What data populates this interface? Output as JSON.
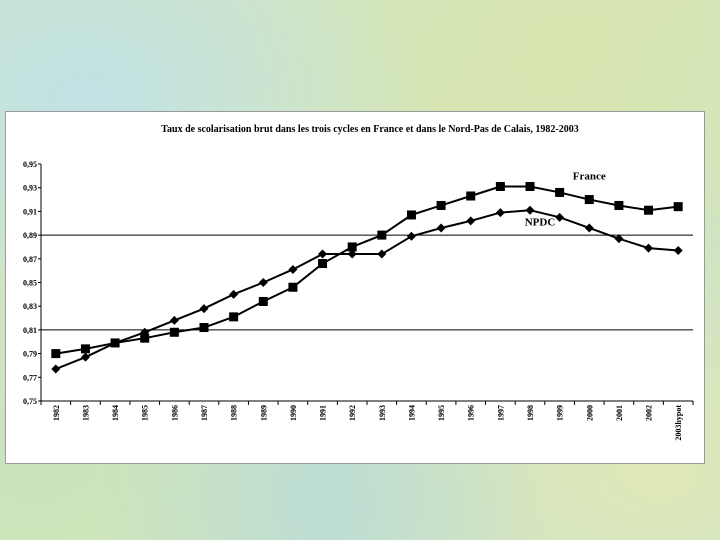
{
  "chart_data": {
    "type": "line",
    "title": "Taux de scolarisation brut dans les trois cycles en France et dans le Nord-Pas de Calais, 1982-2003",
    "xlabel": "",
    "ylabel": "",
    "categories": [
      "1982",
      "1983",
      "1984",
      "1985",
      "1986",
      "1987",
      "1988",
      "1989",
      "1990",
      "1991",
      "1992",
      "1993",
      "1994",
      "1995",
      "1996",
      "1997",
      "1998",
      "1999",
      "2000",
      "2001",
      "2002",
      "2003hypot"
    ],
    "ylim": [
      0.75,
      0.95
    ],
    "yticks": [
      "0,95",
      "0,93",
      "0,91",
      "0,89",
      "0,87",
      "0,85",
      "0,83",
      "0,81",
      "0,79",
      "0,77",
      "0,75"
    ],
    "ytick_values": [
      0.95,
      0.93,
      0.91,
      0.89,
      0.87,
      0.85,
      0.83,
      0.81,
      0.79,
      0.77,
      0.75
    ],
    "reference_lines": [
      0.89,
      0.81
    ],
    "legend": "inline labels",
    "series": [
      {
        "name": "France",
        "marker": "square",
        "color": "#000000",
        "values": [
          0.79,
          0.794,
          0.799,
          0.803,
          0.808,
          0.812,
          0.821,
          0.834,
          0.846,
          0.866,
          0.88,
          0.89,
          0.907,
          0.915,
          0.923,
          0.931,
          0.931,
          0.926,
          0.92,
          0.915,
          0.911,
          0.914
        ]
      },
      {
        "name": "NPDC",
        "marker": "diamond",
        "color": "#000000",
        "values": [
          0.777,
          0.787,
          0.799,
          0.808,
          0.818,
          0.828,
          0.84,
          0.85,
          0.861,
          0.874,
          0.874,
          0.874,
          0.889,
          0.896,
          0.902,
          0.909,
          0.911,
          0.905,
          0.896,
          0.887,
          0.879,
          0.877
        ]
      }
    ]
  }
}
